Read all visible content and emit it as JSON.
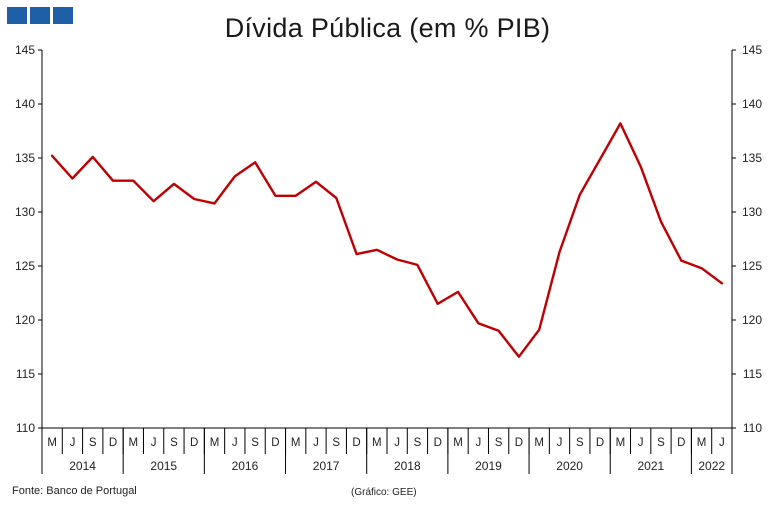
{
  "title": "Dívida Pública (em % PIB)",
  "source": "Fonte: Banco de Portugal",
  "credit": "(Gráfico: GEE)",
  "colors": {
    "line": "#c00000",
    "logo": "#1f5fa8",
    "axis": "#000000"
  },
  "chart_data": {
    "type": "line",
    "title": "Dívida Pública (em % PIB)",
    "xlabel": "",
    "ylabel": "",
    "ylim": [
      110,
      145
    ],
    "yticks": [
      110,
      115,
      120,
      125,
      130,
      135,
      140,
      145
    ],
    "y_axes": [
      "left",
      "right"
    ],
    "grid": false,
    "month_labels": [
      "M",
      "J",
      "S",
      "D",
      "M",
      "J",
      "S",
      "D",
      "M",
      "J",
      "S",
      "D",
      "M",
      "J",
      "S",
      "D",
      "M",
      "J",
      "S",
      "D",
      "M",
      "J",
      "S",
      "D",
      "M",
      "J",
      "S",
      "D",
      "M",
      "J",
      "S",
      "D",
      "M",
      "J"
    ],
    "year_groups": [
      {
        "label": "2014",
        "count": 4
      },
      {
        "label": "2015",
        "count": 4
      },
      {
        "label": "2016",
        "count": 4
      },
      {
        "label": "2017",
        "count": 4
      },
      {
        "label": "2018",
        "count": 4
      },
      {
        "label": "2019",
        "count": 4
      },
      {
        "label": "2020",
        "count": 4
      },
      {
        "label": "2021",
        "count": 4
      },
      {
        "label": "2022",
        "count": 2
      }
    ],
    "series": [
      {
        "values": [
          135.2,
          133.1,
          135.1,
          132.9,
          132.9,
          131.0,
          132.6,
          131.2,
          130.8,
          133.3,
          134.6,
          131.5,
          131.5,
          132.8,
          131.3,
          126.1,
          126.5,
          125.6,
          125.1,
          121.5,
          122.6,
          119.7,
          119.0,
          116.6,
          119.1,
          126.3,
          131.6,
          134.9,
          138.2,
          134.2,
          129.1,
          125.5,
          124.8,
          123.4
        ]
      }
    ]
  }
}
